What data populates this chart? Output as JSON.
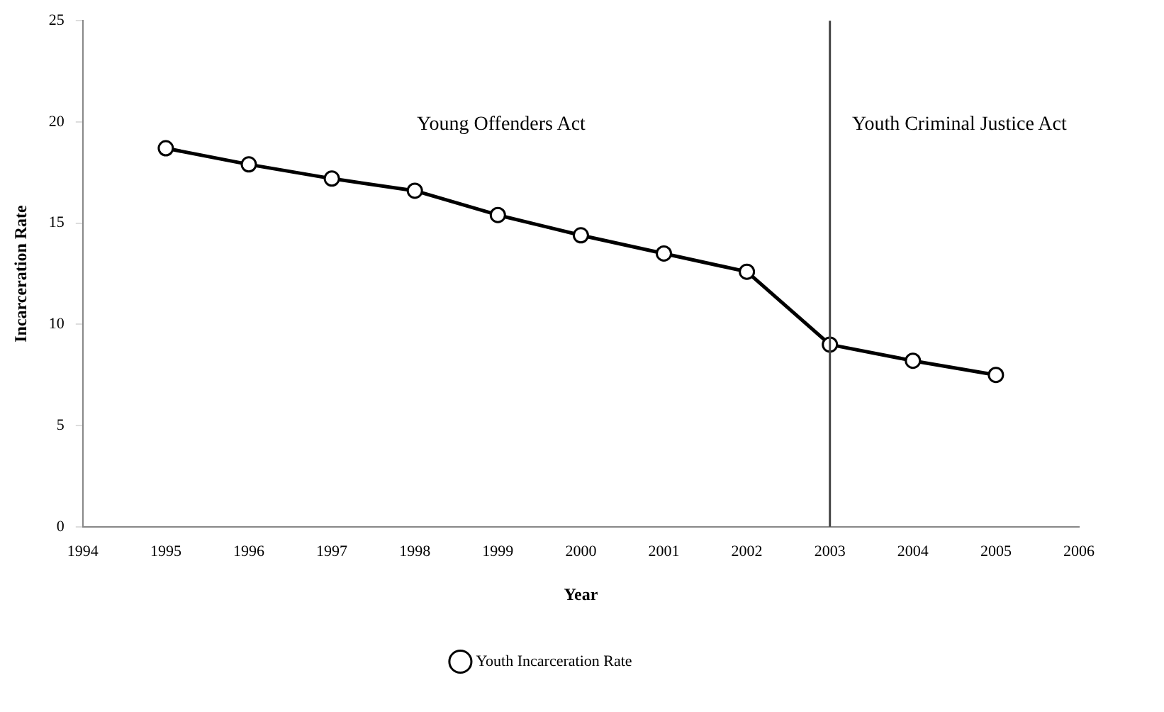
{
  "chart_data": {
    "type": "line",
    "xlabel": "Year",
    "ylabel": "Incarceration Rate",
    "x": [
      1995,
      1996,
      1997,
      1998,
      1999,
      2000,
      2001,
      2002,
      2003,
      2004,
      2005
    ],
    "series": [
      {
        "name": "Youth Incarceration Rate",
        "color": "#000000",
        "values": [
          18.7,
          17.9,
          17.2,
          16.6,
          15.4,
          14.4,
          13.5,
          12.6,
          9.0,
          8.2,
          7.5
        ]
      }
    ],
    "xlim": [
      1994,
      2006
    ],
    "xticks": [
      1994,
      1995,
      1996,
      1997,
      1998,
      1999,
      2000,
      2001,
      2002,
      2003,
      2004,
      2005,
      2006
    ],
    "ylim": [
      0,
      25
    ],
    "yticks": [
      0,
      5,
      10,
      15,
      20,
      25
    ],
    "ref_lines": [
      {
        "axis": "x",
        "value": 2003,
        "color": "#444444"
      }
    ],
    "annotations": [
      "Young Offenders Act",
      "Youth Criminal Justice Act"
    ],
    "grid": false,
    "legend": "bottom",
    "marker": "circle",
    "line_style": "solid"
  }
}
